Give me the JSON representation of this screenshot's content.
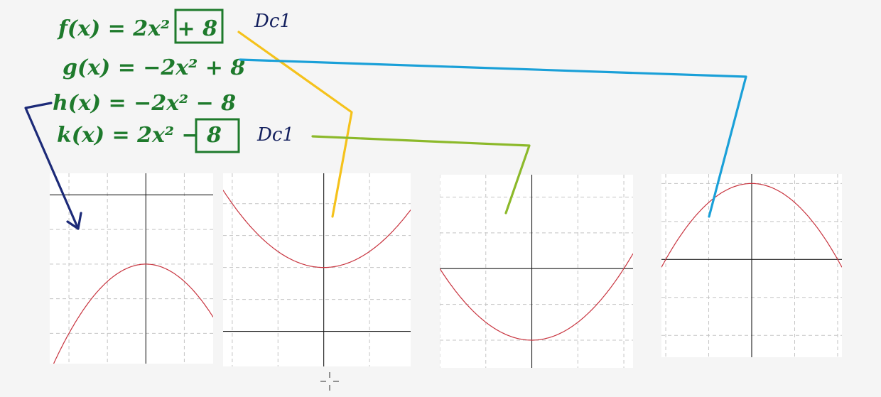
{
  "equations": [
    {
      "id": "f",
      "text": "f(x) = 2x² + 8",
      "boxed_term": "+ 8",
      "note": "Dc1",
      "color": "#1e7a2c"
    },
    {
      "id": "g",
      "text": "g(x) = −2x² + 8",
      "color": "#1e7a2c"
    },
    {
      "id": "h",
      "text": "h(x) = −2x² − 8",
      "color": "#1e7a2c"
    },
    {
      "id": "k",
      "text": "k(x) = 2x² − 8",
      "boxed_term": "− 8",
      "note": "Dc1",
      "color": "#1e7a2c"
    }
  ],
  "connectors": [
    {
      "from": "h",
      "to_graph": 1,
      "color": "#1c2a78",
      "arrowhead": true
    },
    {
      "from": "f",
      "to_graph": 2,
      "color": "#f5c21b"
    },
    {
      "from": "k",
      "to_graph": 3,
      "color": "#8cb92a"
    },
    {
      "from": "g",
      "to_graph": 4,
      "color": "#1aa0d8"
    }
  ],
  "chart_data": [
    {
      "type": "line",
      "function": "h(x) = -2x^2 - 8",
      "a": -2,
      "c": -8,
      "xlim": [
        -2.5,
        1.75
      ],
      "ylim": [
        -19.5,
        2.5
      ],
      "x_grid": [
        -2,
        -1,
        1
      ],
      "y_grid": [
        -4,
        -8,
        -12,
        -16
      ],
      "grid": true,
      "curve_color": "#c8343f",
      "title": "",
      "xlabel": "",
      "ylabel": ""
    },
    {
      "type": "line",
      "function": "f(x) = 2x^2 + 8",
      "a": 2,
      "c": 8,
      "xlim": [
        -2.2,
        1.9
      ],
      "ylim": [
        -4.4,
        19.8
      ],
      "x_grid": [
        -2,
        -1,
        1
      ],
      "y_grid": [
        4,
        8,
        12,
        16
      ],
      "grid": true,
      "curve_color": "#c8343f",
      "title": "",
      "xlabel": "",
      "ylabel": ""
    },
    {
      "type": "line",
      "function": "k(x) = 2x^2 - 8",
      "a": 2,
      "c": -8,
      "xlim": [
        -2.0,
        2.2
      ],
      "ylim": [
        -11.1,
        10.5
      ],
      "x_grid": [
        -2,
        -1,
        1,
        2
      ],
      "y_grid": [
        -8,
        -4,
        4,
        8
      ],
      "grid": true,
      "curve_color": "#c8343f",
      "title": "",
      "xlabel": "",
      "ylabel": ""
    },
    {
      "type": "line",
      "function": "g(x) = -2x^2 + 8",
      "a": -2,
      "c": 8,
      "xlim": [
        -2.1,
        2.1
      ],
      "ylim": [
        -10.3,
        9.0
      ],
      "x_grid": [
        -2,
        -1,
        1,
        2
      ],
      "y_grid": [
        -8,
        -4,
        4,
        8
      ],
      "grid": true,
      "curve_color": "#c8343f",
      "title": "",
      "xlabel": "",
      "ylabel": ""
    }
  ]
}
